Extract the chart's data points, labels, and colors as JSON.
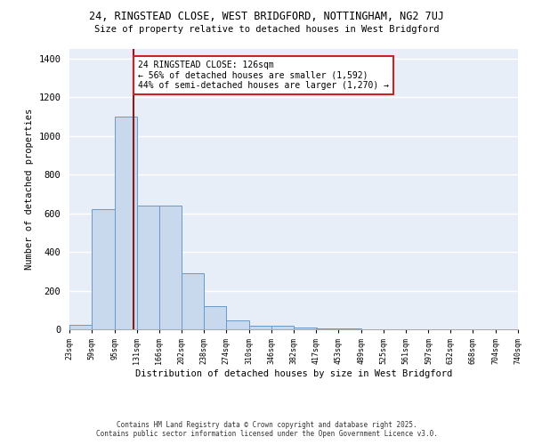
{
  "title_line1": "24, RINGSTEAD CLOSE, WEST BRIDGFORD, NOTTINGHAM, NG2 7UJ",
  "title_line2": "Size of property relative to detached houses in West Bridgford",
  "xlabel": "Distribution of detached houses by size in West Bridgford",
  "ylabel": "Number of detached properties",
  "bar_color": "#c8d9ee",
  "bar_edge_color": "#6699cc",
  "background_color": "#e8eef8",
  "grid_color": "#ffffff",
  "bins": [
    23,
    59,
    95,
    131,
    166,
    202,
    238,
    274,
    310,
    346,
    382,
    417,
    453,
    489,
    525,
    561,
    597,
    632,
    668,
    704,
    740
  ],
  "counts": [
    25,
    620,
    1100,
    640,
    640,
    290,
    120,
    45,
    20,
    20,
    10,
    5,
    3,
    2,
    2,
    1,
    1,
    1,
    0,
    1
  ],
  "property_size": 126,
  "vline_color": "#8b1a1a",
  "annotation_text": "24 RINGSTEAD CLOSE: 126sqm\n← 56% of detached houses are smaller (1,592)\n44% of semi-detached houses are larger (1,270) →",
  "ylim": [
    0,
    1450
  ],
  "footnote1": "Contains HM Land Registry data © Crown copyright and database right 2025.",
  "footnote2": "Contains public sector information licensed under the Open Government Licence v3.0."
}
